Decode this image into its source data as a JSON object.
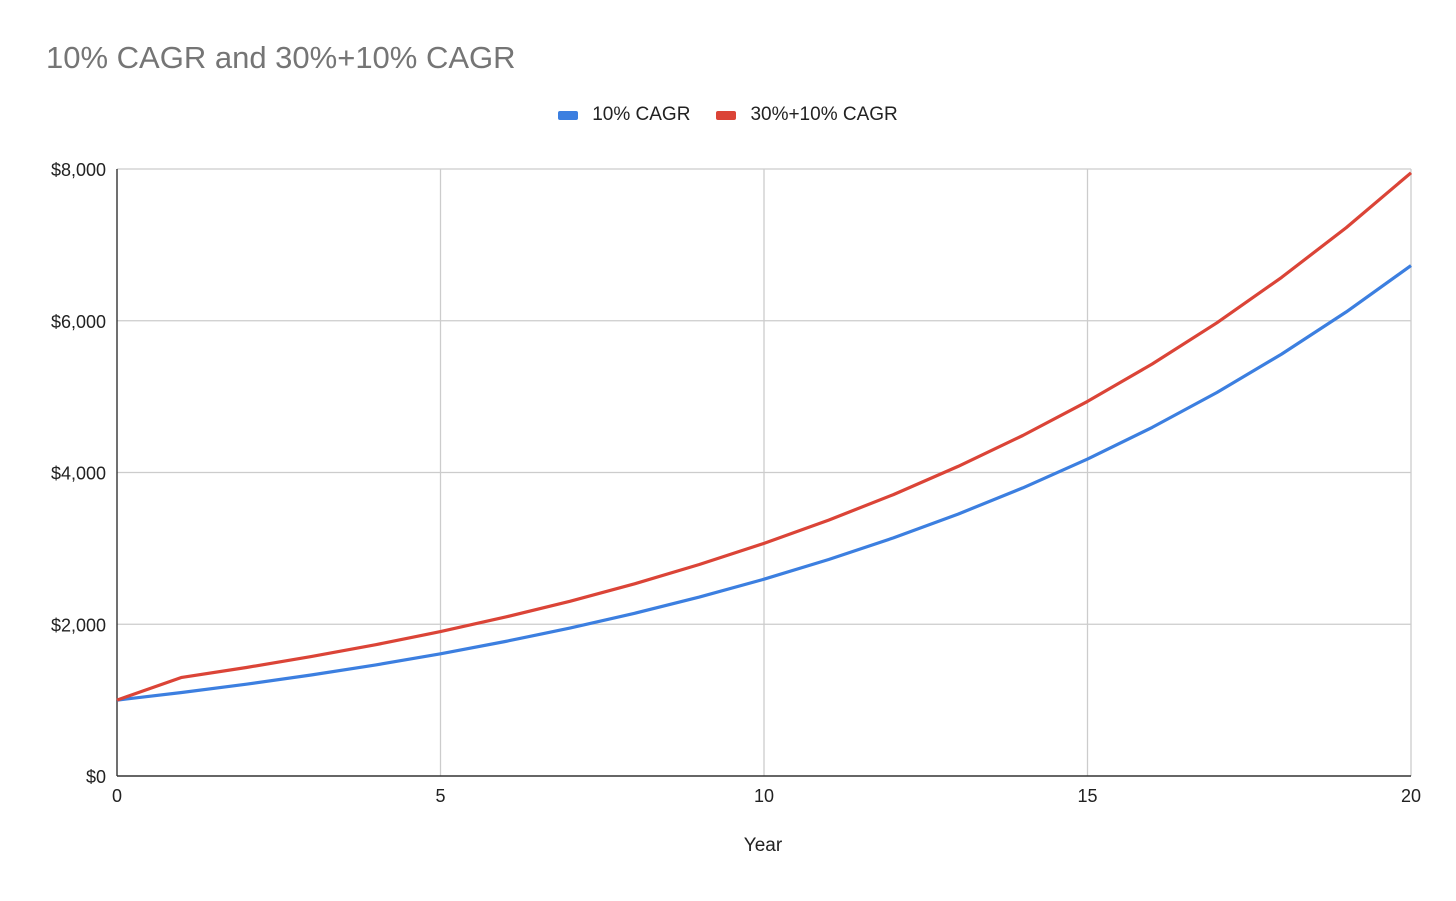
{
  "chart_data": {
    "type": "line",
    "title": "10% CAGR and 30%+10% CAGR",
    "xlabel": "Year",
    "ylabel": "",
    "x": [
      0,
      1,
      2,
      3,
      4,
      5,
      6,
      7,
      8,
      9,
      10,
      11,
      12,
      13,
      14,
      15,
      16,
      17,
      18,
      19,
      20
    ],
    "xlim": [
      0,
      20
    ],
    "ylim": [
      0,
      8000
    ],
    "xticks": [
      0,
      5,
      10,
      15,
      20
    ],
    "yticks": [
      0,
      2000,
      4000,
      6000,
      8000
    ],
    "ytick_labels": [
      "$0",
      "$2,000",
      "$4,000",
      "$6,000",
      "$8,000"
    ],
    "grid": true,
    "legend": "top-center",
    "series": [
      {
        "name": "10% CAGR",
        "color": "#3c7fe0",
        "values": [
          1000,
          1100,
          1210,
          1331,
          1464,
          1611,
          1772,
          1949,
          2144,
          2358,
          2594,
          2853,
          3138,
          3452,
          3797,
          4177,
          4595,
          5054,
          5560,
          6116,
          6727
        ]
      },
      {
        "name": "30%+10% CAGR",
        "color": "#db4437",
        "values": [
          1000,
          1300,
          1430,
          1573,
          1730,
          1903,
          2094,
          2303,
          2533,
          2787,
          3065,
          3372,
          3709,
          4080,
          4488,
          4937,
          5430,
          5973,
          6571,
          7228,
          7950
        ]
      }
    ]
  }
}
